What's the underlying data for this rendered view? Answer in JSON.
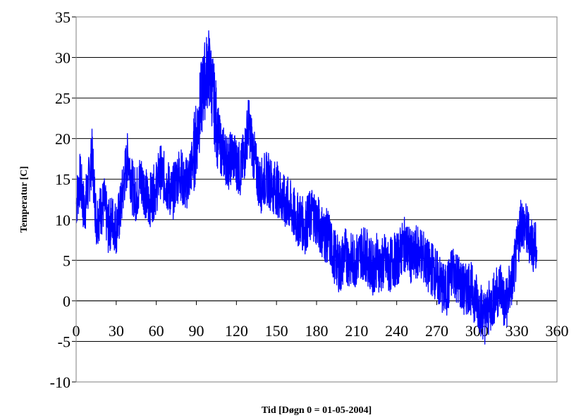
{
  "chart_data": {
    "type": "line",
    "title": "",
    "xlabel": "Tid [Døgn 0 = 01-05-2004]",
    "ylabel": "Temperatur [C]",
    "xlim": [
      0,
      360
    ],
    "ylim": [
      -10,
      35
    ],
    "x_ticks": [
      0,
      30,
      60,
      90,
      120,
      150,
      180,
      210,
      240,
      270,
      300,
      330,
      360
    ],
    "y_ticks": [
      -10,
      -5,
      0,
      5,
      10,
      15,
      20,
      25,
      30,
      35
    ],
    "grid": "horizontal",
    "legend": "none",
    "series": [
      {
        "color": "#0000FF",
        "x": [
          0,
          3,
          6,
          9,
          12,
          15,
          18,
          21,
          24,
          27,
          30,
          33,
          36,
          39,
          42,
          45,
          48,
          51,
          54,
          57,
          60,
          63,
          66,
          69,
          72,
          75,
          78,
          81,
          84,
          87,
          90,
          93,
          96,
          99,
          102,
          105,
          108,
          111,
          114,
          117,
          120,
          123,
          126,
          129,
          132,
          135,
          138,
          141,
          144,
          147,
          150,
          153,
          156,
          159,
          162,
          165,
          168,
          171,
          174,
          177,
          180,
          183,
          186,
          189,
          192,
          195,
          198,
          201,
          204,
          207,
          210,
          213,
          216,
          219,
          222,
          225,
          228,
          231,
          234,
          237,
          240,
          243,
          246,
          249,
          252,
          255,
          258,
          261,
          264,
          267,
          270,
          273,
          276,
          279,
          282,
          285,
          288,
          291,
          294,
          297,
          300,
          303,
          306,
          309,
          312,
          315,
          318,
          321,
          324,
          327,
          330,
          333,
          336,
          339,
          342,
          345
        ],
        "y": [
          12,
          15,
          11,
          14,
          18,
          10,
          11,
          12,
          9,
          10,
          9,
          11,
          15,
          18,
          14,
          13,
          15,
          14,
          12,
          13,
          14,
          16,
          15,
          14,
          13,
          15,
          16,
          14,
          15,
          17,
          20,
          24,
          27,
          29,
          26,
          22,
          19,
          18,
          17,
          18,
          17,
          16,
          18,
          22,
          19,
          16,
          14,
          15,
          15,
          14,
          14,
          13,
          12,
          12,
          11,
          10,
          10,
          9,
          10,
          11,
          10,
          9,
          8,
          8,
          6,
          5,
          4,
          6,
          5,
          5,
          5,
          6,
          6,
          5,
          4,
          5,
          4,
          5,
          4,
          5,
          5,
          6,
          7,
          6,
          5,
          6,
          6,
          5,
          4,
          4,
          3,
          2,
          1,
          2,
          4,
          3,
          2,
          1,
          2,
          1,
          0,
          -1,
          -2,
          -1,
          0,
          1,
          2,
          -1,
          1,
          3,
          6,
          10,
          9,
          8,
          7,
          6
        ]
      }
    ]
  }
}
